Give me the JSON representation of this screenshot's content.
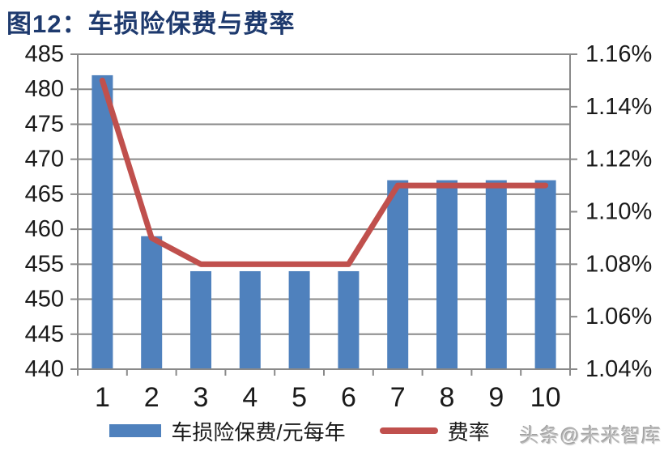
{
  "figure": {
    "title": "图12：车损险保费与费率",
    "watermark": "头条@未来智库"
  },
  "chart_data": {
    "type": "combo-bar-line",
    "categories": [
      "1",
      "2",
      "3",
      "4",
      "5",
      "6",
      "7",
      "8",
      "9",
      "10"
    ],
    "series": [
      {
        "name": "车损险保费/元每年",
        "type": "bar",
        "axis": "left",
        "color": "#4F81BD",
        "values": [
          482,
          459,
          454,
          454,
          454,
          454,
          467,
          467,
          467,
          467
        ]
      },
      {
        "name": "费率",
        "type": "line",
        "axis": "right",
        "color": "#C0504D",
        "values": [
          1.15,
          1.09,
          1.08,
          1.08,
          1.08,
          1.08,
          1.11,
          1.11,
          1.11,
          1.11
        ]
      }
    ],
    "left_axis": {
      "min": 440,
      "max": 485,
      "step": 5
    },
    "right_axis": {
      "min": 1.04,
      "max": 1.16,
      "step": 0.02,
      "suffix": "%",
      "decimals": 2
    },
    "grid": true,
    "gridline_color": "#898989",
    "axis_text_color": "#1a1a1a",
    "legend_position": "bottom"
  }
}
